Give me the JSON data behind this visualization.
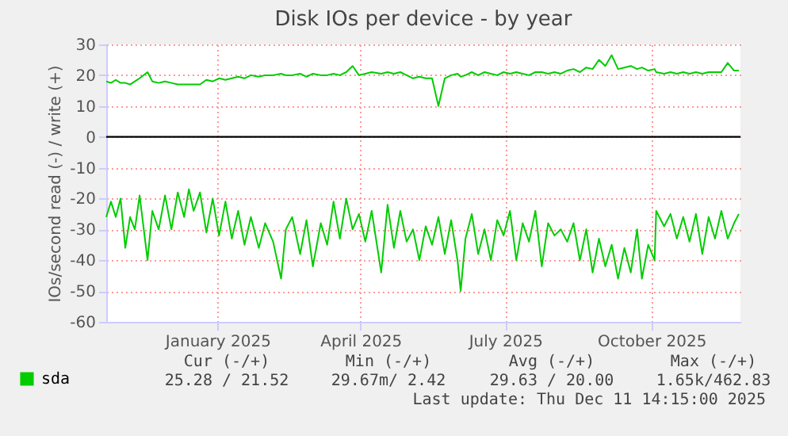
{
  "chart_data": {
    "type": "line",
    "title": "Disk IOs per device - by year",
    "ylabel": "IOs/second read (-) / write (+)",
    "x": [
      "2024-11-07",
      "2024-11-10",
      "2024-11-13",
      "2024-11-16",
      "2024-11-19",
      "2024-11-22",
      "2024-11-25",
      "2024-11-28",
      "2024-12-03",
      "2024-12-06",
      "2024-12-10",
      "2024-12-14",
      "2024-12-18",
      "2024-12-22",
      "2024-12-26",
      "2024-12-29",
      "2025-01-01",
      "2025-01-05",
      "2025-01-09",
      "2025-01-13",
      "2025-01-17",
      "2025-01-21",
      "2025-01-25",
      "2025-01-29",
      "2025-02-02",
      "2025-02-06",
      "2025-02-11",
      "2025-02-15",
      "2025-02-20",
      "2025-02-25",
      "2025-02-28",
      "2025-03-04",
      "2025-03-09",
      "2025-03-13",
      "2025-03-17",
      "2025-03-22",
      "2025-03-26",
      "2025-03-30",
      "2025-04-03",
      "2025-04-07",
      "2025-04-11",
      "2025-04-15",
      "2025-04-19",
      "2025-04-23",
      "2025-04-29",
      "2025-05-03",
      "2025-05-07",
      "2025-05-11",
      "2025-05-15",
      "2025-05-19",
      "2025-05-23",
      "2025-05-27",
      "2025-05-31",
      "2025-06-04",
      "2025-06-08",
      "2025-06-12",
      "2025-06-16",
      "2025-06-18",
      "2025-06-21",
      "2025-06-25",
      "2025-06-29",
      "2025-07-03",
      "2025-07-07",
      "2025-07-11",
      "2025-07-15",
      "2025-07-19",
      "2025-07-23",
      "2025-07-27",
      "2025-07-31",
      "2025-08-04",
      "2025-08-08",
      "2025-08-12",
      "2025-08-16",
      "2025-08-20",
      "2025-08-24",
      "2025-08-28",
      "2025-09-01",
      "2025-09-05",
      "2025-09-09",
      "2025-09-13",
      "2025-09-17",
      "2025-09-21",
      "2025-09-25",
      "2025-09-29",
      "2025-10-03",
      "2025-10-07",
      "2025-10-10",
      "2025-10-14",
      "2025-10-18",
      "2025-10-19",
      "2025-10-24",
      "2025-10-28",
      "2025-11-01",
      "2025-11-05",
      "2025-11-09",
      "2025-11-13",
      "2025-11-17",
      "2025-11-21",
      "2025-11-25",
      "2025-11-29",
      "2025-12-03",
      "2025-12-07",
      "2025-12-10"
    ],
    "series": [
      {
        "name": "sda",
        "color": "#00cc00",
        "values": [
          -26,
          -21,
          -26,
          -20,
          -36,
          -26,
          -30,
          -19,
          -40,
          -24,
          -30,
          -19,
          -30,
          -18,
          -26,
          -17,
          -24,
          -18,
          -31,
          -20,
          -32,
          -21,
          -33,
          -24,
          -35,
          -26,
          -36,
          -28,
          -34,
          -46,
          -30,
          -26,
          -38,
          -27,
          -42,
          -28,
          -35,
          -21,
          -33,
          -20,
          -30,
          -25,
          -34,
          -24,
          -44,
          -22,
          -36,
          -24,
          -34,
          -30,
          -40,
          -29,
          -35,
          -26,
          -38,
          -27,
          -40,
          -50,
          -33,
          -25,
          -38,
          -30,
          -40,
          -27,
          -32,
          -24,
          -40,
          -28,
          -34,
          -24,
          -42,
          -28,
          -32,
          -30,
          -34,
          -28,
          -40,
          -30,
          -44,
          -33,
          -42,
          -35,
          -46,
          -36,
          -44,
          -30,
          -46,
          -35,
          -40,
          -24,
          -29,
          -25,
          -33,
          -26,
          -34,
          -25,
          -38,
          -26,
          -33,
          -24,
          -33,
          -28,
          -25
        ]
      },
      {
        "color": "#00cc00",
        "values": [
          18,
          17.5,
          18.5,
          17.5,
          17.5,
          17,
          18,
          19,
          21,
          18,
          17.5,
          18,
          17.5,
          17,
          17,
          17,
          17,
          17,
          18.5,
          18,
          19,
          18.5,
          19,
          19.5,
          19,
          20,
          19.5,
          20,
          20,
          20.5,
          20,
          20,
          20.5,
          19.5,
          20.5,
          20,
          20,
          20.5,
          20,
          21,
          23,
          20,
          20.5,
          21,
          20.5,
          21,
          20.5,
          21,
          20,
          19,
          19.5,
          19,
          19,
          10,
          19,
          20,
          20.5,
          19.5,
          20,
          21,
          20,
          21,
          20.5,
          20,
          21,
          20.5,
          21,
          20.5,
          20,
          21,
          21,
          20.5,
          21,
          20.5,
          21.5,
          22,
          21,
          22.5,
          22,
          25,
          23,
          26.5,
          22,
          22.5,
          23,
          22,
          22.5,
          21.5,
          22,
          21,
          20.5,
          21,
          20.5,
          21,
          20.5,
          21,
          20.5,
          21,
          21,
          21,
          24,
          21.5,
          21.5
        ]
      }
    ],
    "xlim": [
      "2024-11-07",
      "2025-12-11"
    ],
    "xticks": [
      {
        "value": "2025-01-16",
        "label": "January 2025"
      },
      {
        "value": "2025-04-16",
        "label": "April 2025"
      },
      {
        "value": "2025-07-16",
        "label": "July 2025"
      },
      {
        "value": "2025-10-16",
        "label": "October 2025"
      }
    ],
    "ylim": [
      -60,
      30
    ],
    "yticks": [
      -60,
      -50,
      -40,
      -30,
      -20,
      -10,
      0,
      10,
      20,
      30
    ],
    "ref_lines": [
      {
        "axis": "y",
        "value": 0,
        "color": "#000000"
      }
    ],
    "grid": true,
    "legend": "bottom left",
    "annotations": [
      "Cur (-/+)",
      "Min (-/+)",
      "Avg (-/+)",
      "Max (-/+)",
      "25.28 / 21.52",
      "29.67m/  2.42",
      "29.63 / 20.00",
      "1.65k/462.83",
      "Last update: Thu Dec 11 14:15:00 2025"
    ]
  }
}
